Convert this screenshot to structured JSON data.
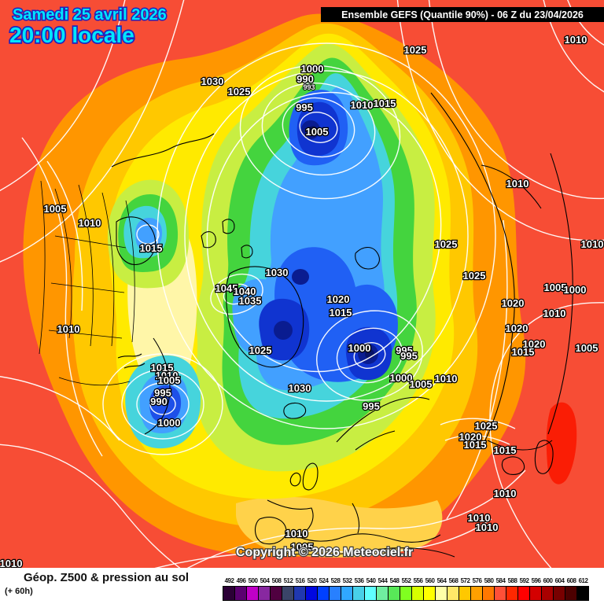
{
  "header": {
    "date_line": "Samedi 25 avril 2026",
    "time_line": "20:00 locale",
    "model_bar": "Ensemble GEFS  (Quantile 90%) - 06 Z du 23/04/2026"
  },
  "map": {
    "copyright": "Copyright © 2026 Meteociel.fr",
    "pressure_labels": [
      "1030",
      "1025",
      "1000",
      "990",
      "993",
      "995",
      "1005",
      "1010",
      "1015",
      "1025",
      "1010",
      "1005",
      "1010",
      "1015",
      "1010",
      "1030",
      "1045",
      "1040",
      "1035",
      "1020",
      "1015",
      "1025",
      "1030",
      "1025",
      "1025",
      "1010",
      "1010",
      "1005",
      "1000",
      "1020",
      "1010",
      "1020",
      "1020",
      "1015",
      "1005",
      "1000",
      "995",
      "995",
      "1000",
      "1005",
      "1010",
      "995",
      "1015",
      "1010",
      "1005",
      "995",
      "990",
      "1000",
      "1025",
      "1020",
      "1015",
      "1015",
      "1010",
      "1010",
      "1010",
      "1010",
      "1005",
      "1010"
    ]
  },
  "footer": {
    "product_title": "Géop. Z500 & pression au sol",
    "lead_time": "(+ 60h)"
  },
  "legend": {
    "values": [
      "492",
      "496",
      "500",
      "504",
      "508",
      "512",
      "516",
      "520",
      "524",
      "528",
      "532",
      "536",
      "540",
      "544",
      "548",
      "552",
      "556",
      "560",
      "564",
      "568",
      "572",
      "576",
      "580",
      "584",
      "588",
      "592",
      "596",
      "600",
      "604",
      "608",
      "612"
    ],
    "colors": [
      "#2b0036",
      "#5a0070",
      "#c000c8",
      "#8828a0",
      "#500040",
      "#3a4468",
      "#2038b0",
      "#0008e0",
      "#0040ff",
      "#2880ff",
      "#30a8ff",
      "#48d0e8",
      "#60ffff",
      "#70eea0",
      "#58e858",
      "#80ff20",
      "#d8ff00",
      "#ffff00",
      "#ffffa8",
      "#ffe868",
      "#ffc800",
      "#ffa000",
      "#ff7800",
      "#ff5038",
      "#ff2800",
      "#ff0000",
      "#d40000",
      "#a80000",
      "#780000",
      "#4c0000",
      "#000000"
    ]
  },
  "colors": {
    "header_text": "#00e6ff",
    "model_bar_bg": "#000000",
    "outer_red": "#f74d35",
    "vortex_core": "#071266"
  }
}
